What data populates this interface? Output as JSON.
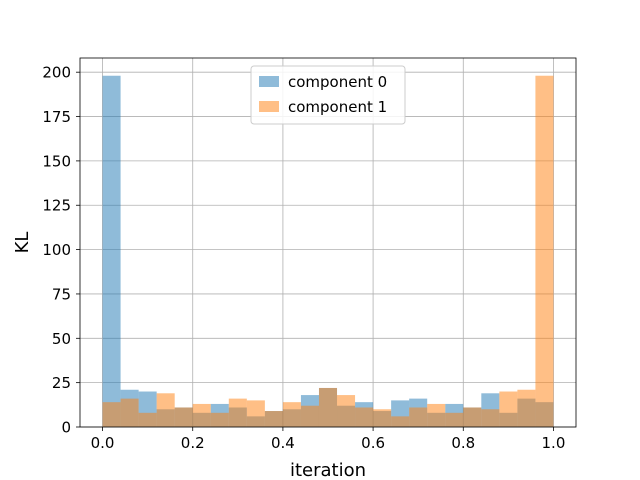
{
  "chart_data": {
    "type": "bar",
    "subtype": "histogram",
    "xlabel": "iteration",
    "ylabel": "KL",
    "xlim": [
      -0.05,
      1.05
    ],
    "ylim": [
      0,
      208
    ],
    "xticks": [
      0.0,
      0.2,
      0.4,
      0.6,
      0.8,
      1.0
    ],
    "xtick_labels": [
      "0.0",
      "0.2",
      "0.4",
      "0.6",
      "0.8",
      "1.0"
    ],
    "yticks": [
      0,
      25,
      50,
      75,
      100,
      125,
      150,
      175,
      200
    ],
    "ytick_labels": [
      "0",
      "25",
      "50",
      "75",
      "100",
      "125",
      "150",
      "175",
      "200"
    ],
    "grid": true,
    "legend_position": "top-center",
    "bin_edges": [
      0.0,
      0.04,
      0.08,
      0.12,
      0.16,
      0.2,
      0.24,
      0.28,
      0.32,
      0.36,
      0.4,
      0.44,
      0.48,
      0.52,
      0.56,
      0.6,
      0.64,
      0.68,
      0.72,
      0.76,
      0.8,
      0.84,
      0.88,
      0.92,
      0.96,
      1.0
    ],
    "series": [
      {
        "name": "component 0",
        "color": "#1f77b4",
        "values": [
          198,
          21,
          20,
          10,
          11,
          8,
          13,
          11,
          6,
          9,
          10,
          18,
          22,
          12,
          14,
          9,
          15,
          16,
          8,
          13,
          11,
          19,
          8,
          16,
          14
        ]
      },
      {
        "name": "component 1",
        "color": "#ff7f0e",
        "values": [
          14,
          16,
          8,
          19,
          11,
          13,
          8,
          16,
          15,
          9,
          14,
          12,
          22,
          18,
          11,
          10,
          6,
          11,
          13,
          8,
          11,
          10,
          20,
          21,
          198
        ]
      }
    ]
  }
}
